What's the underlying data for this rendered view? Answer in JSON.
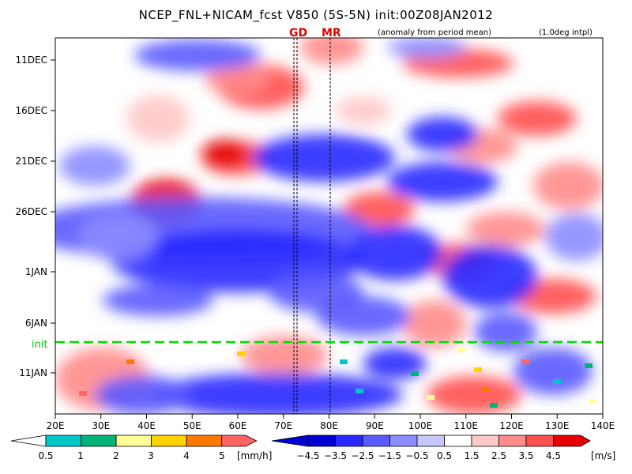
{
  "chart_data": {
    "type": "heatmap",
    "title": "NCEP_FNL+NICAM_fcst V850 (5S-5N) init:00Z08JAN2012",
    "subtitle": "(anomaly from period mean)",
    "note": "(1.0deg intpl)",
    "x_ticks": [
      "20E",
      "30E",
      "40E",
      "50E",
      "60E",
      "70E",
      "80E",
      "90E",
      "100E",
      "110E",
      "120E",
      "130E",
      "140E"
    ],
    "y_ticks": [
      "11DEC",
      "16DEC",
      "21DEC",
      "26DEC",
      "1JAN",
      "6JAN",
      "11JAN"
    ],
    "init_label": "init",
    "markers": [
      "GD",
      "MR"
    ],
    "precip_colorbar": {
      "labels": [
        "0.5",
        "1",
        "2",
        "3",
        "4",
        "5"
      ],
      "unit": "[mm/h]",
      "colors": [
        "#00c8c8",
        "#00b478",
        "#ffff96",
        "#ffd200",
        "#ff7800",
        "#ff6464"
      ]
    },
    "wind_colorbar": {
      "labels": [
        "-4.5",
        "-3.5",
        "-2.5",
        "-1.5",
        "-0.5",
        "0.5",
        "1.5",
        "2.5",
        "3.5",
        "4.5"
      ],
      "unit": "[m/s]",
      "colors": [
        "#0000d2",
        "#2828ff",
        "#5a5aff",
        "#8c8cff",
        "#c8c8ff",
        "#ffffff",
        "#ffc8c8",
        "#ff8c8c",
        "#ff5050",
        "#e60000"
      ]
    }
  }
}
